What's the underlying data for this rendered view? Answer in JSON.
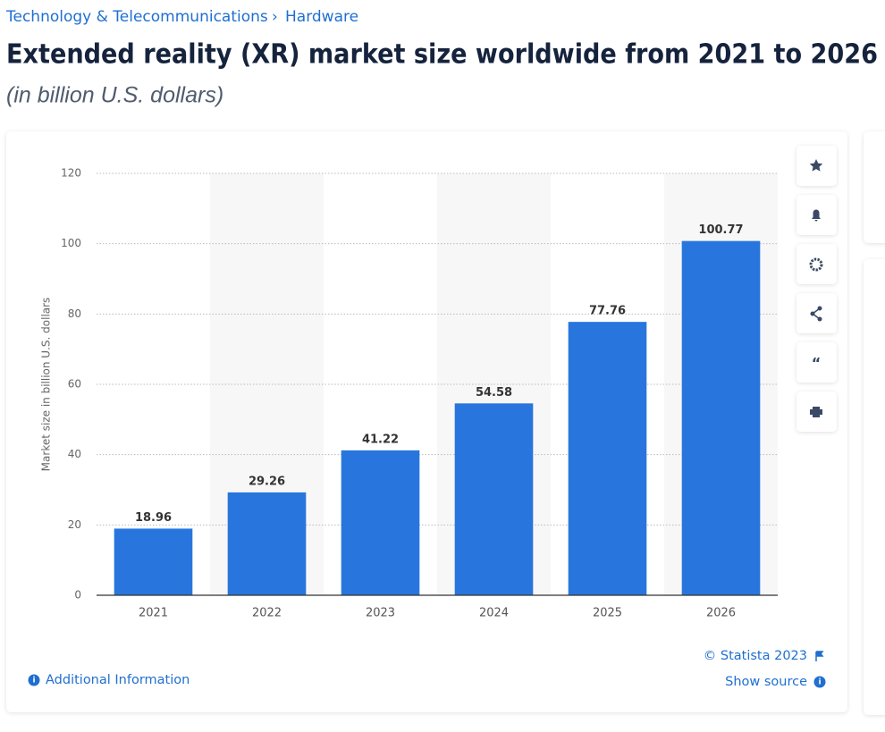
{
  "breadcrumb": [
    "Technology & Telecommunications",
    "Hardware"
  ],
  "chart_data": {
    "type": "bar",
    "title": "Extended reality (XR) market size worldwide from 2021 to 2026",
    "subtitle": "(in billion U.S. dollars)",
    "y_label": "Market size in billion U.S. dollars",
    "categories": [
      "2021",
      "2022",
      "2023",
      "2024",
      "2025",
      "2026"
    ],
    "values": [
      18.96,
      29.26,
      41.22,
      54.58,
      77.76,
      100.77
    ],
    "color": "#2876dd",
    "ylim": [
      0,
      120
    ],
    "yticks": [
      0,
      20,
      40,
      60,
      80,
      100,
      120
    ],
    "grid": true
  },
  "footer": {
    "additional_info": "Additional Information",
    "credit": "© Statista 2023",
    "source": "Show source"
  }
}
